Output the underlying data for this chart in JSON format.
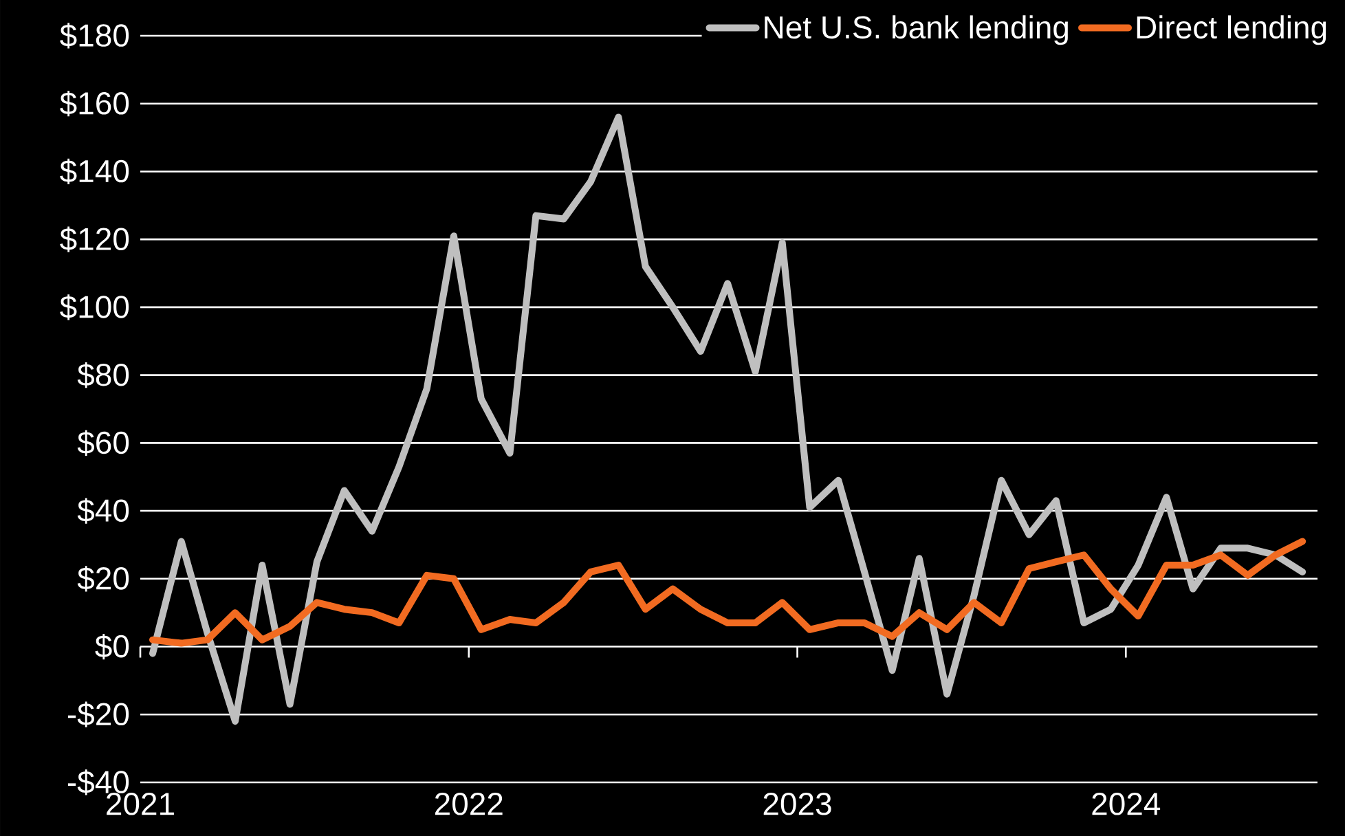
{
  "chart_data": {
    "type": "line",
    "x": [
      "2021-01-15",
      "2021-02-15",
      "2021-03-15",
      "2021-04-15",
      "2021-05-15",
      "2021-06-15",
      "2021-07-15",
      "2021-08-15",
      "2021-09-15",
      "2021-10-15",
      "2021-11-15",
      "2021-12-15",
      "2022-01-15",
      "2022-02-15",
      "2022-03-15",
      "2022-04-15",
      "2022-05-15",
      "2022-06-15",
      "2022-07-15",
      "2022-08-15",
      "2022-09-15",
      "2022-10-15",
      "2022-11-15",
      "2022-12-15",
      "2023-01-15",
      "2023-02-15",
      "2023-03-15",
      "2023-04-15",
      "2023-05-15",
      "2023-06-15",
      "2023-07-15",
      "2023-08-15",
      "2023-09-15",
      "2023-10-15",
      "2023-11-15",
      "2023-12-15",
      "2024-01-15",
      "2024-02-15",
      "2024-03-15",
      "2024-04-15",
      "2024-05-15",
      "2024-06-15",
      "2024-07-15"
    ],
    "series": [
      {
        "name": "Net U.S. bank lending",
        "color": "#bfbfbf",
        "values": [
          -2,
          31,
          4,
          -22,
          24,
          -17,
          25,
          46,
          34,
          53,
          76,
          121,
          73,
          57,
          127,
          126,
          137,
          156,
          112,
          100,
          87,
          107,
          81,
          119,
          41,
          49,
          22,
          -7,
          26,
          -14,
          15,
          49,
          33,
          43,
          7,
          11,
          24,
          44,
          17,
          29,
          29,
          27,
          22
        ]
      },
      {
        "name": "Direct lending",
        "color": "#f26b21",
        "values": [
          2,
          1,
          2,
          10,
          2,
          6,
          13,
          11,
          10,
          7,
          21,
          20,
          5,
          8,
          7,
          13,
          22,
          24,
          11,
          17,
          11,
          7,
          7,
          13,
          5,
          7,
          7,
          3,
          10,
          5,
          13,
          7,
          23,
          25,
          27,
          17,
          9,
          24,
          24,
          27,
          21,
          27,
          31
        ]
      }
    ],
    "xlim": [
      "2021-01-01",
      "2024-08-01"
    ],
    "xticks": [
      {
        "value": "2021-01-01",
        "label": "2021"
      },
      {
        "value": "2022-01-01",
        "label": "2022"
      },
      {
        "value": "2023-01-01",
        "label": "2023"
      },
      {
        "value": "2024-01-01",
        "label": "2024"
      }
    ],
    "ylim": [
      -40,
      180
    ],
    "yticks": [
      {
        "value": -40,
        "label": "-$40"
      },
      {
        "value": -20,
        "label": "-$20"
      },
      {
        "value": 0,
        "label": "$0"
      },
      {
        "value": 20,
        "label": "$20"
      },
      {
        "value": 40,
        "label": "$40"
      },
      {
        "value": 60,
        "label": "$60"
      },
      {
        "value": 80,
        "label": "$80"
      },
      {
        "value": 100,
        "label": "$100"
      },
      {
        "value": 120,
        "label": "$120"
      },
      {
        "value": 140,
        "label": "$140"
      },
      {
        "value": 160,
        "label": "$160"
      },
      {
        "value": 180,
        "label": "$180"
      }
    ],
    "grid": "y",
    "legend": "top right",
    "marker": "none",
    "line_style": "solid"
  }
}
